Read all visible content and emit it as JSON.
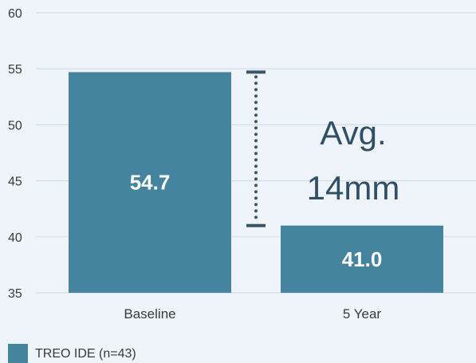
{
  "chart_data": {
    "type": "bar",
    "categories": [
      "Baseline",
      "5 Year"
    ],
    "series": [
      {
        "name": "TREO IDE (n=43)",
        "values": [
          54.7,
          41.0
        ]
      }
    ],
    "data_labels": [
      "54.7",
      "41.0"
    ],
    "ylim": [
      35,
      60
    ],
    "yticks": [
      35,
      40,
      45,
      50,
      55,
      60
    ],
    "ytick_labels": [
      "35",
      "40",
      "45",
      "50",
      "55",
      "60"
    ],
    "grid": true,
    "legend_position": "bottom-left",
    "annotation": {
      "line1": "Avg.",
      "line2": "14mm",
      "from": 54.7,
      "to": 41.0
    },
    "colors": {
      "bar": "#44849f",
      "bracket": "#3c5566",
      "grid": "#d3dde6",
      "background": "#eef4f9"
    }
  }
}
